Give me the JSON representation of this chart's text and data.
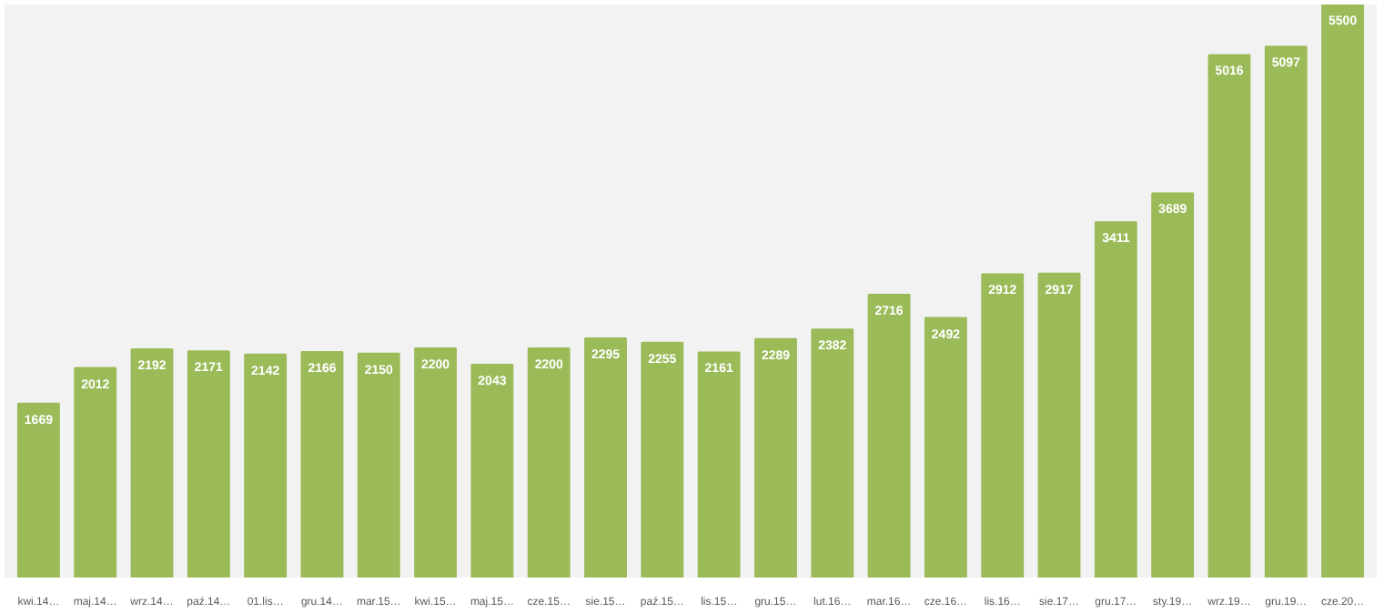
{
  "chart_data": {
    "type": "bar",
    "categories": [
      "kwi.14…",
      "maj.14…",
      "wrz.14…",
      "paź.14…",
      "01.lis…",
      "gru.14…",
      "mar.15…",
      "kwi.15…",
      "maj.15…",
      "cze.15…",
      "sie.15…",
      "paź.15…",
      "lis.15…",
      "gru.15…",
      "lut.16…",
      "mar.16…",
      "cze.16…",
      "lis.16…",
      "sie.17…",
      "gru.17…",
      "sty.19…",
      "wrz.19…",
      "gru.19…",
      "cze.20…"
    ],
    "values": [
      1669,
      2012,
      2192,
      2171,
      2142,
      2166,
      2150,
      2200,
      2043,
      2200,
      2295,
      2255,
      2161,
      2289,
      2382,
      2716,
      2492,
      2912,
      2917,
      3411,
      3689,
      5016,
      5097,
      5500
    ],
    "color": "#9bbb59",
    "data_labels": true,
    "grid": false
  }
}
